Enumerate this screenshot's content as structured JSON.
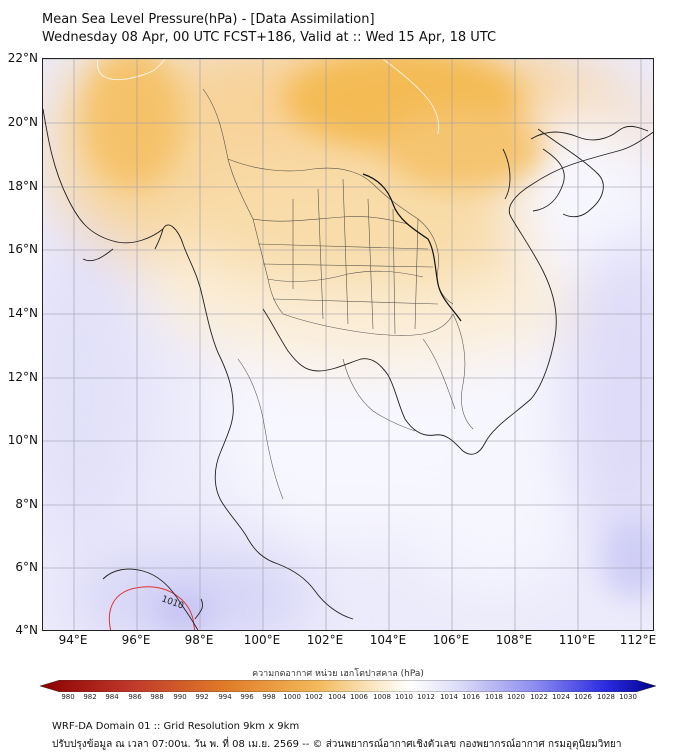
{
  "title_line1": "Mean Sea Level Pressure(hPa) - [Data Assimilation]",
  "title_line2": "Wednesday 08 Apr, 00 UTC FCST+186, Valid at :: Wed 15 Apr, 18 UTC",
  "lat_labels": [
    "22°N",
    "20°N",
    "18°N",
    "16°N",
    "14°N",
    "12°N",
    "10°N",
    "8°N",
    "6°N",
    "4°N"
  ],
  "lon_labels": [
    "94°E",
    "96°E",
    "98°E",
    "100°E",
    "102°E",
    "104°E",
    "106°E",
    "108°E",
    "110°E",
    "112°E"
  ],
  "contour_label": "1010",
  "colorbar": {
    "title": "ความกดอากาศ หน่วย เฮกโตปาสคาล (hPa)",
    "ticks": [
      "980",
      "982",
      "984",
      "986",
      "988",
      "990",
      "992",
      "994",
      "996",
      "998",
      "1000",
      "1002",
      "1004",
      "1006",
      "1008",
      "1010",
      "1012",
      "1014",
      "1016",
      "1018",
      "1020",
      "1022",
      "1024",
      "1026",
      "1028",
      "1030"
    ],
    "low_color": "#8b0000",
    "mid_color": "#ffffff",
    "high_color": "#00008b"
  },
  "footer_line1": "WRF-DA Domain 01 :: Grid Resolution 9km x 9km",
  "footer_line2": "ปรับปรุงข้อมูล ณ เวลา 07:00น. วัน พ. ที่ 08 เม.ย. 2569 -- © ส่วนพยากรณ์อากาศเชิงตัวเลข กองพยากรณ์อากาศ กรมอุตุนิยมวิทยา"
}
